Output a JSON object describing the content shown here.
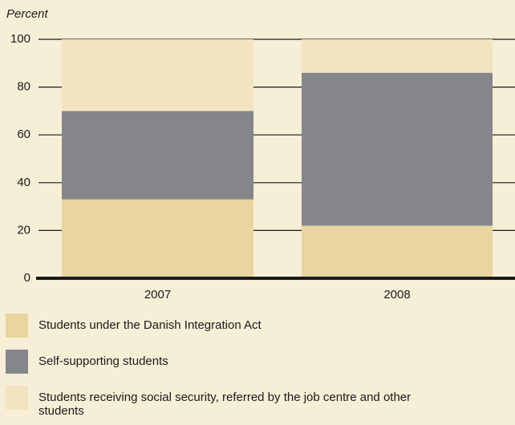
{
  "chart_data": {
    "type": "stacked_bar",
    "ylabel": "Percent",
    "categories": [
      "2007",
      "2008"
    ],
    "series": [
      {
        "name": "Students under the Danish Integration Act",
        "color": "#e8d59f",
        "values": [
          33,
          22
        ]
      },
      {
        "name": "Self-supporting students",
        "color": "#848689",
        "values": [
          37,
          64
        ]
      },
      {
        "name": "Students receiving social security, referred by the job centre and other students",
        "color": "#f3e4c1",
        "values": [
          30,
          14
        ]
      }
    ],
    "ylim": [
      0,
      100
    ],
    "yticks": [
      0,
      20,
      40,
      60,
      80,
      100
    ],
    "grid": true
  }
}
